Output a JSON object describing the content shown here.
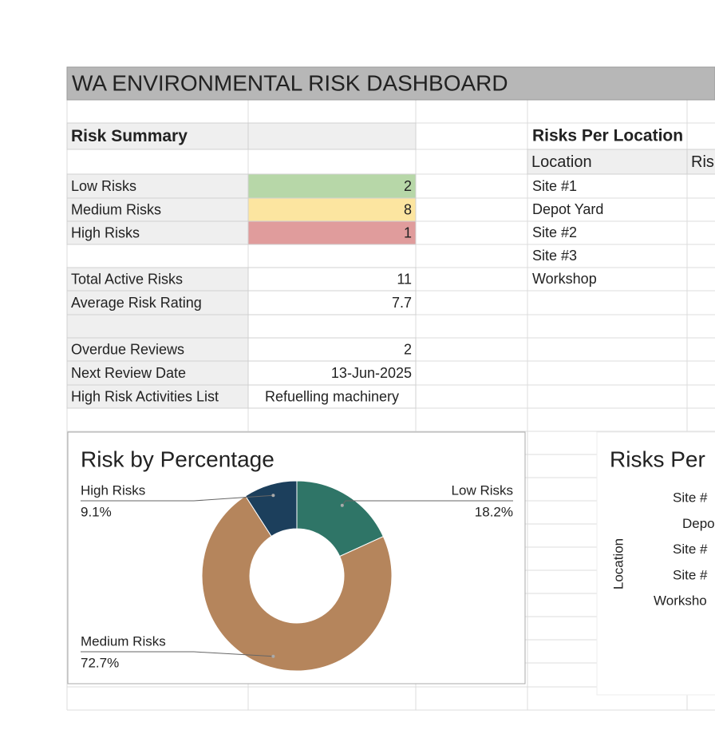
{
  "title": "WA ENVIRONMENTAL RISK DASHBOARD",
  "risk_summary": {
    "heading": "Risk Summary",
    "rows": [
      [
        "Low Risks",
        2
      ],
      [
        "Medium Risks",
        8
      ],
      [
        "High Risks",
        1
      ],
      [
        "Total Active Risks",
        11
      ],
      [
        "Average Risk Rating",
        7.7
      ],
      [
        "Overdue Reviews",
        2
      ],
      [
        "Next Review Date",
        "13-Jun-2025"
      ],
      [
        "High Risk Activities List",
        "Refuelling machinery"
      ]
    ]
  },
  "risks_per_location": {
    "heading": "Risks Per Location",
    "columns": [
      "Location",
      "Ris"
    ],
    "rows": [
      "Site #1",
      "Depot Yard",
      "Site #2",
      "Site #3",
      "Workshop"
    ]
  },
  "chart_data": [
    {
      "type": "pie",
      "donut": true,
      "title": "Risk by Percentage",
      "categories": [
        "Low Risks",
        "Medium Risks",
        "High Risks"
      ],
      "values": [
        18.2,
        72.7,
        9.1
      ],
      "value_labels": [
        "18.2%",
        "72.7%",
        "9.1%"
      ],
      "colors": [
        "#2f7567",
        "#b5855c",
        "#1c3f5c"
      ]
    },
    {
      "type": "bar",
      "orientation": "horizontal",
      "title": "Risks Per",
      "y_label": "Location",
      "categories": [
        "Site #",
        "Depo",
        "Site #",
        "Site #",
        "Worksho"
      ]
    }
  ]
}
